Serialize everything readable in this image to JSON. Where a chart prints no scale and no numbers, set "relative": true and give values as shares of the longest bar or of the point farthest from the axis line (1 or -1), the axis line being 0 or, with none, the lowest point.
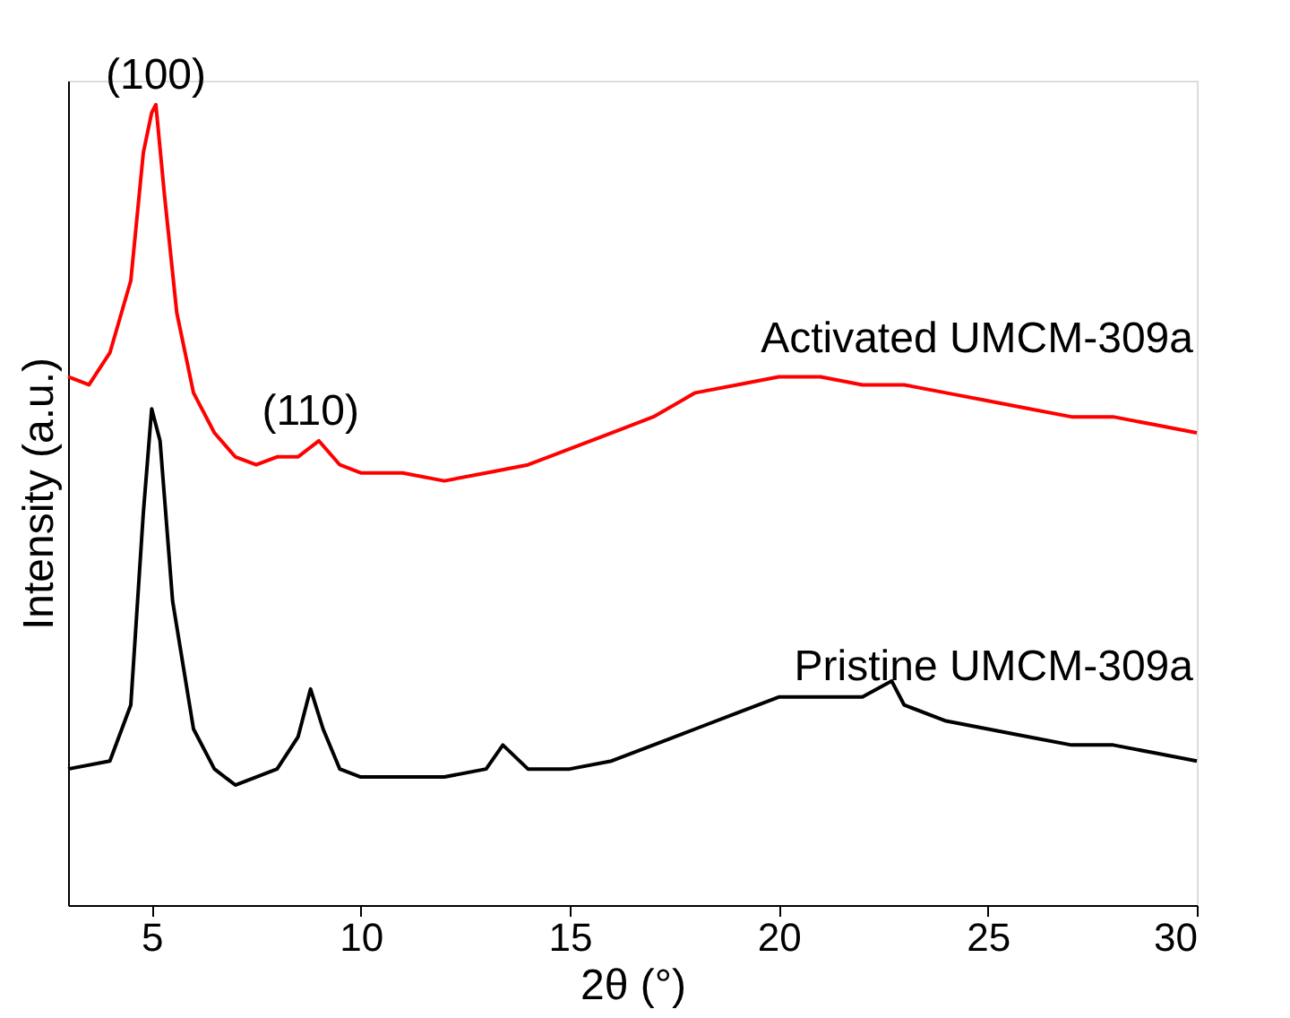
{
  "chart_data": {
    "type": "line",
    "relative": true,
    "xlabel": "2θ (°)",
    "ylabel": "Intensity (a.u.)",
    "xlim": [
      3,
      30
    ],
    "xticks": [
      5,
      10,
      15,
      20,
      25,
      30
    ],
    "tick_labels": "x",
    "grid": false,
    "line_style": "solid",
    "marker": "none",
    "series": [
      {
        "name": "Activated UMCM-309a",
        "color": "#ff0000",
        "x": [
          3,
          3.5,
          4,
          4.5,
          4.8,
          5.0,
          5.1,
          5.3,
          5.6,
          6,
          6.5,
          7,
          7.5,
          8,
          8.5,
          9,
          9.5,
          10,
          11,
          12,
          13,
          14,
          15,
          16,
          17,
          18,
          19,
          20,
          21,
          22,
          23,
          24,
          25,
          26,
          27,
          28,
          29,
          30
        ],
        "values": [
          0.66,
          0.65,
          0.69,
          0.78,
          0.94,
          0.99,
          1.0,
          0.89,
          0.74,
          0.64,
          0.59,
          0.56,
          0.55,
          0.56,
          0.56,
          0.58,
          0.55,
          0.54,
          0.54,
          0.53,
          0.54,
          0.55,
          0.57,
          0.59,
          0.61,
          0.64,
          0.65,
          0.66,
          0.66,
          0.65,
          0.65,
          0.64,
          0.63,
          0.62,
          0.61,
          0.61,
          0.6,
          0.59
        ]
      },
      {
        "name": "Pristine UMCM-309a",
        "color": "#000000",
        "x": [
          3,
          4,
          4.5,
          4.8,
          5.0,
          5.2,
          5.5,
          6,
          6.5,
          7,
          7.5,
          8,
          8.5,
          8.8,
          9.1,
          9.5,
          10,
          11,
          12,
          13,
          13.4,
          14,
          15,
          16,
          17,
          18,
          19,
          20,
          21,
          22,
          22.7,
          23,
          24,
          25,
          26,
          27,
          28,
          29,
          30
        ],
        "values": [
          0.17,
          0.18,
          0.25,
          0.49,
          0.62,
          0.58,
          0.38,
          0.22,
          0.17,
          0.15,
          0.16,
          0.17,
          0.21,
          0.27,
          0.22,
          0.17,
          0.16,
          0.16,
          0.16,
          0.17,
          0.2,
          0.17,
          0.17,
          0.18,
          0.2,
          0.22,
          0.24,
          0.26,
          0.26,
          0.26,
          0.28,
          0.25,
          0.23,
          0.22,
          0.21,
          0.2,
          0.2,
          0.19,
          0.18
        ]
      }
    ],
    "annotations": [
      {
        "text": "(100)",
        "x": 5.1,
        "y": 1.0
      },
      {
        "text": "(110)",
        "x": 8.8,
        "y": 0.58
      }
    ]
  }
}
